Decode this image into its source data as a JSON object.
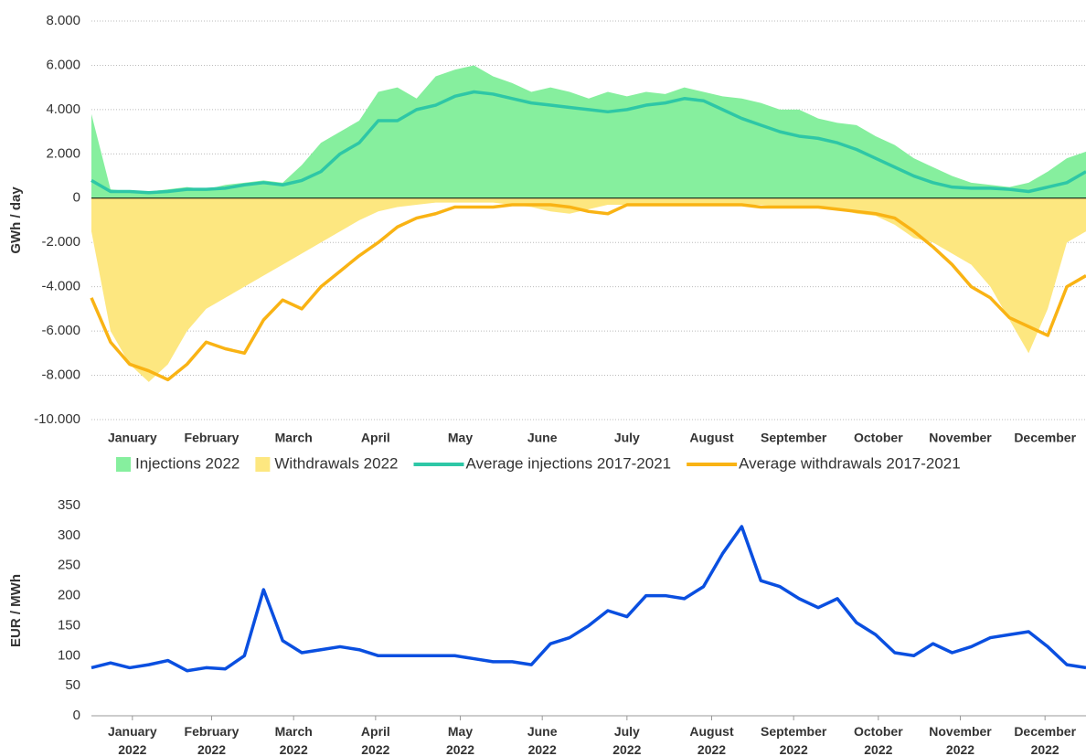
{
  "chart_data": [
    {
      "type": "area",
      "y_label": "GWh / day",
      "x": [
        1,
        8,
        15,
        22,
        29,
        36,
        43,
        50,
        57,
        64,
        71,
        78,
        85,
        92,
        99,
        106,
        113,
        120,
        127,
        134,
        141,
        148,
        155,
        162,
        169,
        176,
        183,
        190,
        197,
        204,
        211,
        218,
        225,
        232,
        239,
        246,
        253,
        260,
        267,
        274,
        281,
        288,
        295,
        302,
        309,
        316,
        323,
        330,
        337,
        344,
        351,
        358,
        365
      ],
      "xlim": [
        1,
        365
      ],
      "xticks": [
        {
          "value": 16,
          "label": "January"
        },
        {
          "value": 45,
          "label": "February"
        },
        {
          "value": 75,
          "label": "March"
        },
        {
          "value": 105,
          "label": "April"
        },
        {
          "value": 136,
          "label": "May"
        },
        {
          "value": 166,
          "label": "June"
        },
        {
          "value": 197,
          "label": "July"
        },
        {
          "value": 228,
          "label": "August"
        },
        {
          "value": 258,
          "label": "September"
        },
        {
          "value": 289,
          "label": "October"
        },
        {
          "value": 319,
          "label": "November"
        },
        {
          "value": 350,
          "label": "December"
        }
      ],
      "ylim": [
        -10000,
        8000
      ],
      "yticks": [
        {
          "value": -10000,
          "label": "-10.000"
        },
        {
          "value": -8000,
          "label": "-8.000"
        },
        {
          "value": -6000,
          "label": "-6.000"
        },
        {
          "value": -4000,
          "label": "-4.000"
        },
        {
          "value": -2000,
          "label": "-2.000"
        },
        0,
        {
          "value": 2000,
          "label": "2.000"
        },
        {
          "value": 4000,
          "label": "4.000"
        },
        {
          "value": 6000,
          "label": "6.000"
        },
        {
          "value": 8000,
          "label": "8.000"
        }
      ],
      "grid": true,
      "legend": "bottom",
      "series": [
        {
          "name": "Injections 2022",
          "style": "area",
          "color": "#86ef9e",
          "values": [
            3800,
            400,
            300,
            300,
            400,
            500,
            400,
            600,
            700,
            800,
            700,
            1500,
            2500,
            3000,
            3500,
            4800,
            5000,
            4500,
            5500,
            5800,
            6000,
            5500,
            5200,
            4800,
            5000,
            4800,
            4500,
            4800,
            4600,
            4800,
            4700,
            5000,
            4800,
            4600,
            4500,
            4300,
            4000,
            4000,
            3600,
            3400,
            3300,
            2800,
            2400,
            1800,
            1400,
            1000,
            700,
            600,
            500,
            700,
            1200,
            1800,
            2100
          ]
        },
        {
          "name": "Withdrawals 2022",
          "style": "area",
          "color": "#fde780",
          "values": [
            -1500,
            -6000,
            -7500,
            -8300,
            -7500,
            -6000,
            -5000,
            -4500,
            -4000,
            -3500,
            -3000,
            -2500,
            -2000,
            -1500,
            -1000,
            -600,
            -400,
            -300,
            -200,
            -200,
            -200,
            -200,
            -300,
            -400,
            -600,
            -700,
            -500,
            -300,
            -300,
            -300,
            -300,
            -300,
            -300,
            -300,
            -300,
            -300,
            -400,
            -400,
            -400,
            -500,
            -700,
            -800,
            -1200,
            -1800,
            -2000,
            -2500,
            -3000,
            -4000,
            -5500,
            -7000,
            -5000,
            -2000,
            -1500
          ]
        },
        {
          "name": "Average injections 2017-2021",
          "style": "line",
          "color": "#2ec7a6",
          "values": [
            800,
            300,
            300,
            250,
            300,
            400,
            400,
            450,
            600,
            700,
            600,
            800,
            1200,
            2000,
            2500,
            3500,
            3500,
            4000,
            4200,
            4600,
            4800,
            4700,
            4500,
            4300,
            4200,
            4100,
            4000,
            3900,
            4000,
            4200,
            4300,
            4500,
            4400,
            4000,
            3600,
            3300,
            3000,
            2800,
            2700,
            2500,
            2200,
            1800,
            1400,
            1000,
            700,
            500,
            450,
            450,
            400,
            300,
            500,
            700,
            1200
          ]
        },
        {
          "name": "Average withdrawals 2017-2021",
          "style": "line",
          "color": "#f9b314",
          "values": [
            -4500,
            -6500,
            -7500,
            -7800,
            -8200,
            -7500,
            -6500,
            -6800,
            -7000,
            -5500,
            -4600,
            -5000,
            -4000,
            -3300,
            -2600,
            -2000,
            -1300,
            -900,
            -700,
            -400,
            -400,
            -400,
            -300,
            -300,
            -300,
            -400,
            -600,
            -700,
            -300,
            -300,
            -300,
            -300,
            -300,
            -300,
            -300,
            -400,
            -400,
            -400,
            -400,
            -500,
            -600,
            -700,
            -900,
            -1500,
            -2200,
            -3000,
            -4000,
            -4500,
            -5400,
            -5800,
            -6200,
            -4000,
            -3500
          ]
        }
      ]
    },
    {
      "type": "line",
      "y_label": "EUR / MWh",
      "x": [
        1,
        8,
        15,
        22,
        29,
        36,
        43,
        50,
        57,
        64,
        71,
        78,
        85,
        92,
        99,
        106,
        113,
        120,
        127,
        134,
        141,
        148,
        155,
        162,
        169,
        176,
        183,
        190,
        197,
        204,
        211,
        218,
        225,
        232,
        239,
        246,
        253,
        260,
        267,
        274,
        281,
        288,
        295,
        302,
        309,
        316,
        323,
        330,
        337,
        344,
        351,
        358,
        365
      ],
      "xlim": [
        1,
        365
      ],
      "xticks": [
        {
          "value": 16,
          "label": "January 2022"
        },
        {
          "value": 45,
          "label": "February 2022"
        },
        {
          "value": 75,
          "label": "March 2022"
        },
        {
          "value": 105,
          "label": "April 2022"
        },
        {
          "value": 136,
          "label": "May 2022"
        },
        {
          "value": 166,
          "label": "June 2022"
        },
        {
          "value": 197,
          "label": "July 2022"
        },
        {
          "value": 228,
          "label": "August 2022"
        },
        {
          "value": 258,
          "label": "September 2022"
        },
        {
          "value": 289,
          "label": "October 2022"
        },
        {
          "value": 319,
          "label": "November 2022"
        },
        {
          "value": 350,
          "label": "December 2022"
        }
      ],
      "ylim": [
        0,
        350
      ],
      "yticks": [
        0,
        50,
        100,
        150,
        200,
        250,
        300,
        350
      ],
      "grid": false,
      "series": [
        {
          "color": "#0a4fe0",
          "values": [
            80,
            88,
            80,
            85,
            92,
            75,
            80,
            78,
            100,
            210,
            125,
            105,
            110,
            115,
            110,
            100,
            100,
            100,
            100,
            100,
            95,
            90,
            90,
            85,
            120,
            130,
            150,
            175,
            165,
            200,
            200,
            195,
            215,
            270,
            315,
            225,
            215,
            195,
            180,
            195,
            155,
            135,
            105,
            100,
            120,
            105,
            115,
            130,
            135,
            140,
            115,
            85,
            80
          ]
        }
      ]
    }
  ]
}
